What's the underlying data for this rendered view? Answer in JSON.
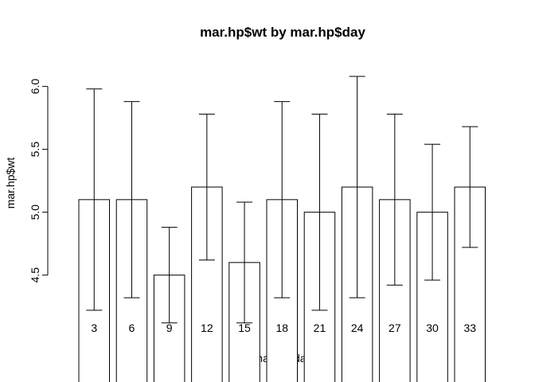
{
  "chart_data": {
    "type": "bar",
    "title": "mar.hp$wt by mar.hp$day",
    "xlabel": "mar.hp$day",
    "ylabel": "mar.hp$wt",
    "categories": [
      "3",
      "6",
      "9",
      "12",
      "15",
      "18",
      "21",
      "24",
      "27",
      "30",
      "33"
    ],
    "values": [
      5.1,
      5.1,
      4.5,
      5.2,
      4.6,
      5.1,
      5.0,
      5.2,
      5.1,
      5.0,
      5.2
    ],
    "error_lower": [
      4.22,
      4.32,
      4.12,
      4.62,
      4.12,
      4.32,
      4.22,
      4.32,
      4.42,
      4.46,
      4.72
    ],
    "error_upper": [
      5.98,
      5.88,
      4.88,
      5.78,
      5.08,
      5.88,
      5.78,
      6.08,
      5.78,
      5.54,
      5.68
    ],
    "yticks": [
      "4.5",
      "5.0",
      "5.5",
      "6.0"
    ],
    "ylim": [
      3.65,
      6.2
    ],
    "grid": false,
    "legend": "none"
  }
}
